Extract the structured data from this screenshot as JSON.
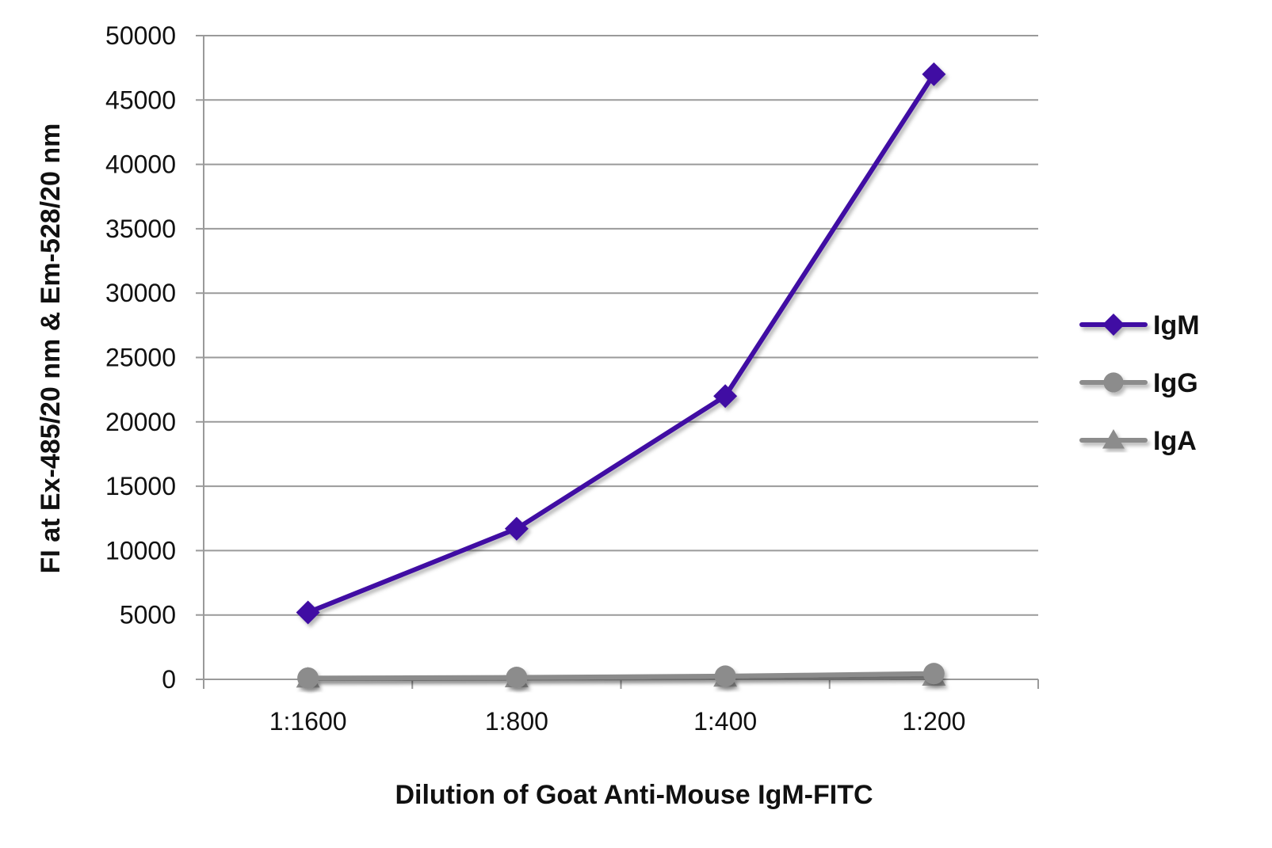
{
  "chart_data": {
    "type": "line",
    "title": "",
    "xlabel": "Dilution of Goat Anti-Mouse IgM-FITC",
    "ylabel": "FI at Ex-485/20 nm & Em-528/20 nm",
    "categories": [
      "1:1600",
      "1:800",
      "1:400",
      "1:200"
    ],
    "ylim": [
      0,
      50000
    ],
    "yticks": [
      "0",
      "5000",
      "10000",
      "15000",
      "20000",
      "25000",
      "30000",
      "35000",
      "40000",
      "45000",
      "50000"
    ],
    "grid": true,
    "legend_position": "right",
    "series": [
      {
        "name": "IgM",
        "values": [
          5200,
          11700,
          22000,
          47000
        ],
        "color": "#3f0fa3",
        "marker": "diamond"
      },
      {
        "name": "IgG",
        "values": [
          100,
          150,
          250,
          450
        ],
        "color": "#8c8c8c",
        "marker": "circle"
      },
      {
        "name": "IgA",
        "values": [
          50,
          80,
          120,
          200
        ],
        "color": "#8c8c8c",
        "marker": "triangle"
      }
    ]
  }
}
